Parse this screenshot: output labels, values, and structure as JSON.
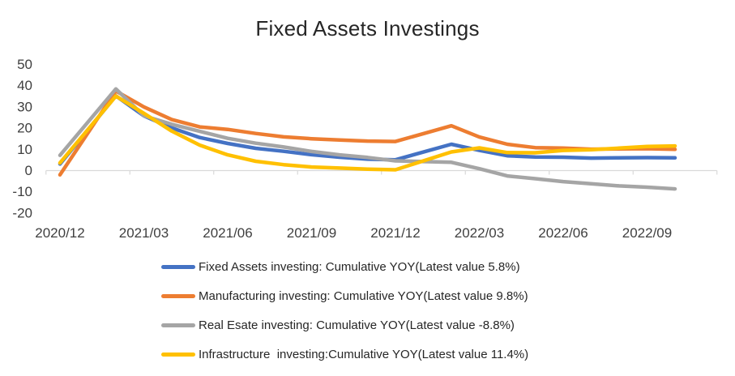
{
  "title": "Fixed Assets Investings",
  "chart_data": {
    "type": "line",
    "x": [
      "2020/12",
      "2021/02",
      "2021/03",
      "2021/04",
      "2021/05",
      "2021/06",
      "2021/07",
      "2021/08",
      "2021/09",
      "2021/10",
      "2021/11",
      "2021/12",
      "2022/02",
      "2022/03",
      "2022/04",
      "2022/05",
      "2022/06",
      "2022/07",
      "2022/08",
      "2022/09",
      "2022/10"
    ],
    "x_axis_tick_labels": [
      "2020/12",
      "2021/03",
      "2021/06",
      "2021/09",
      "2021/12",
      "2022/03",
      "2022/06",
      "2022/09"
    ],
    "y_ticks": [
      50,
      40,
      30,
      20,
      10,
      0,
      -10,
      -20
    ],
    "ylim": [
      -20,
      50
    ],
    "grid": false,
    "legend_position": "bottom",
    "axis_color": "#D9D9D9",
    "text_color": "#3F3F3F",
    "series": [
      {
        "name": "Fixed Assets investing",
        "legend_label": "Fixed Assets investing: Cumulative YOY(Latest value 5.8%)",
        "latest_value": 5.8,
        "color": "#4472C4",
        "values": [
          2.9,
          35.0,
          25.6,
          19.9,
          15.4,
          12.6,
          10.3,
          8.9,
          7.3,
          6.1,
          5.2,
          4.9,
          12.2,
          9.3,
          6.8,
          6.2,
          6.1,
          5.7,
          5.8,
          5.9,
          5.8
        ]
      },
      {
        "name": "Manufacturing investing",
        "legend_label": "Manufacturing investing: Cumulative YOY(Latest value 9.8%)",
        "latest_value": 9.8,
        "color": "#ED7D31",
        "values": [
          -2.2,
          37.3,
          29.8,
          23.8,
          20.4,
          19.2,
          17.3,
          15.7,
          14.8,
          14.2,
          13.7,
          13.5,
          20.9,
          15.6,
          12.2,
          10.6,
          10.4,
          9.9,
          10.0,
          10.1,
          9.8
        ]
      },
      {
        "name": "Real Esate investing",
        "legend_label": "Real Esate investing: Cumulative YOY(Latest value -8.8%)",
        "latest_value": -8.8,
        "color": "#A5A5A5",
        "values": [
          7.0,
          38.3,
          25.6,
          21.6,
          18.3,
          15.0,
          12.7,
          10.9,
          8.8,
          7.2,
          6.0,
          4.4,
          3.7,
          0.7,
          -2.7,
          -4.0,
          -5.4,
          -6.4,
          -7.4,
          -8.0,
          -8.8
        ]
      },
      {
        "name": "Infrastructure investing",
        "legend_label": "Infrastructure  investing:Cumulative YOY(Latest value 11.4%)",
        "latest_value": 11.4,
        "color": "#FFC000",
        "values": [
          3.4,
          34.9,
          26.8,
          18.4,
          11.8,
          7.2,
          4.2,
          2.6,
          1.5,
          1.0,
          0.5,
          0.2,
          8.6,
          10.5,
          8.3,
          8.2,
          9.3,
          9.6,
          10.4,
          11.2,
          11.4
        ]
      }
    ]
  }
}
